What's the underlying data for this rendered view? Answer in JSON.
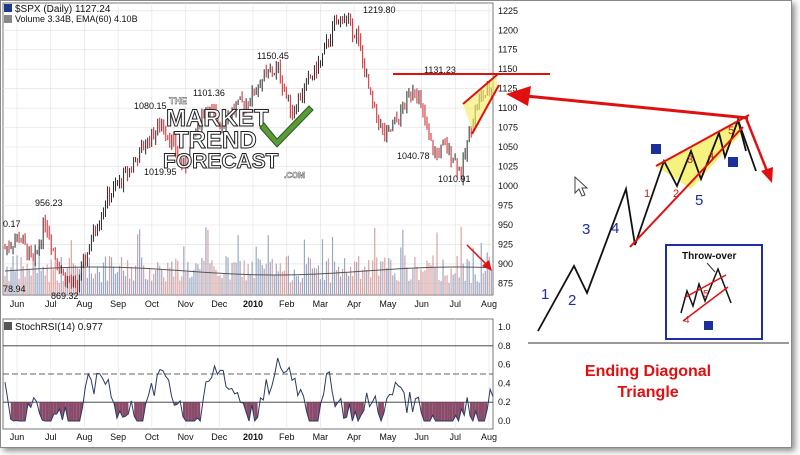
{
  "chart_data": [
    {
      "type": "bar-candlestick",
      "header_symbol": "$SPX (Daily) 1127.24",
      "volume_text": "Volume 3.34B, EMA(60) 4.10B",
      "y_ticks": [
        875,
        900,
        925,
        950,
        975,
        1000,
        1025,
        1050,
        1075,
        1100,
        1125,
        1150,
        1175,
        1200,
        1225
      ],
      "ylim": [
        860,
        1235
      ],
      "x_ticks": [
        "Jun",
        "Jul",
        "Aug",
        "Sep",
        "Oct",
        "Nov",
        "Dec",
        "2010",
        "Feb",
        "Mar",
        "Apr",
        "May",
        "Jun",
        "Jul",
        "Aug"
      ],
      "price_labels": [
        "956.23",
        "1080.15",
        "1101.36",
        "1019.95",
        "1150.45",
        "1219.80",
        "1131.23",
        "1040.78",
        "1010.91",
        "869.32",
        "78.94",
        "0.17"
      ],
      "series": [
        {
          "name": "SPX",
          "x": [
            0,
            10,
            20,
            28,
            35,
            42,
            50,
            60,
            70,
            80,
            90,
            100,
            110,
            118,
            125,
            132,
            140,
            150,
            160,
            170,
            180,
            190,
            200,
            210,
            220,
            228,
            236,
            245,
            255,
            265,
            275,
            285,
            290,
            295,
            300,
            306,
            312,
            318,
            324,
            330,
            340
          ],
          "values": [
            920,
            935,
            900,
            956,
            910,
            880,
            870,
            930,
            980,
            1005,
            1030,
            1060,
            1080,
            1050,
            1020,
            1070,
            1101,
            1080,
            1100,
            1110,
            1140,
            1150,
            1095,
            1130,
            1160,
            1200,
            1219,
            1195,
            1110,
            1060,
            1090,
            1131,
            1100,
            1060,
            1040,
            1050,
            1040,
            1015,
            1075,
            1110,
            1127
          ]
        }
      ]
    },
    {
      "type": "line",
      "title": "StochRSI(14) 0.977",
      "y_ticks": [
        "0.0",
        "0.2",
        "0.4",
        "0.6",
        "0.8",
        "1.0"
      ],
      "ylim": [
        0,
        1
      ],
      "x_ticks": [
        "Jun",
        "Jul",
        "Aug",
        "Sep",
        "Oct",
        "Nov",
        "Dec",
        "2010",
        "Feb",
        "Mar",
        "Apr",
        "May",
        "Jun",
        "Jul",
        "Aug"
      ]
    }
  ],
  "logo": {
    "the": "THE",
    "line1": "MARKET",
    "line2": "TREND",
    "line3": "FORECAST",
    "suffix": ".COM"
  },
  "diagram": {
    "wave_labels": [
      "1",
      "2",
      "3",
      "4",
      "5"
    ],
    "sub_labels": [
      "1",
      "2",
      "3",
      "4",
      "5"
    ],
    "inset_title": "Throw-over",
    "inset_labels": [
      "4",
      "5"
    ],
    "caption_line1": "Ending Diagonal",
    "caption_line2": "Triangle"
  },
  "colors": {
    "up_bar": "#2a2a2a",
    "down_bar": "#d21f26",
    "arrow_red": "#e01010",
    "wave_blue": "#1c2f9c",
    "wedge_yellow": "#f5f06a",
    "stoch_fill": "#7a7338"
  }
}
